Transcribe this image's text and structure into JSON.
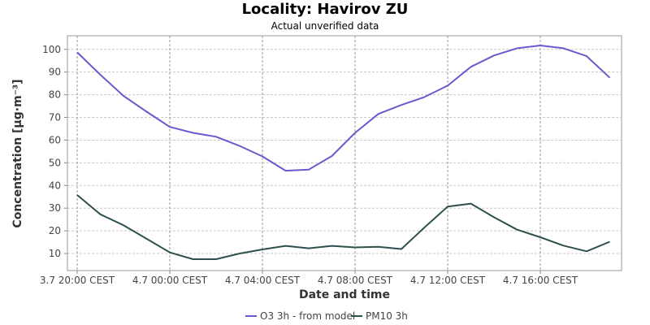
{
  "chart_data": {
    "type": "line",
    "title": "Locality: Havirov ZU",
    "subtitle": "Actual unverified data",
    "xlabel": "Date and time",
    "ylabel": "Concentration [µg·m⁻³]",
    "ylim": [
      2.5,
      106
    ],
    "y_ticks": [
      10,
      20,
      30,
      40,
      50,
      60,
      70,
      80,
      90,
      100
    ],
    "x_start_index": 0,
    "x_end_index": 23.5,
    "x_tick_labels": [
      {
        "index": 0,
        "label": "3.7 20:00 CEST"
      },
      {
        "index": 4,
        "label": "4.7 00:00 CEST"
      },
      {
        "index": 8,
        "label": "4.7 04:00 CEST"
      },
      {
        "index": 12,
        "label": "4.7 08:00 CEST"
      },
      {
        "index": 16,
        "label": "4.7 12:00 CEST"
      },
      {
        "index": 20,
        "label": "4.7 16:00 CEST"
      }
    ],
    "grid": true,
    "legend": "bottom",
    "x": [
      "3.7 20:00",
      "3.7 21:00",
      "3.7 22:00",
      "3.7 23:00",
      "4.7 00:00",
      "4.7 01:00",
      "4.7 02:00",
      "4.7 03:00",
      "4.7 04:00",
      "4.7 05:00",
      "4.7 06:00",
      "4.7 07:00",
      "4.7 08:00",
      "4.7 09:00",
      "4.7 10:00",
      "4.7 11:00",
      "4.7 12:00",
      "4.7 13:00",
      "4.7 14:00",
      "4.7 15:00",
      "4.7 16:00",
      "4.7 17:00",
      "4.7 18:00",
      "4.7 19:00"
    ],
    "series": [
      {
        "name": "O3 3h - from model",
        "color": "#6a5acd",
        "values": [
          98.7,
          88.8,
          79.5,
          72.5,
          65.8,
          63.2,
          61.5,
          57.5,
          52.8,
          46.5,
          47.0,
          53.0,
          63.2,
          71.5,
          75.5,
          79.0,
          84.0,
          92.3,
          97.3,
          100.5,
          101.7,
          100.5,
          97.0,
          87.5
        ]
      },
      {
        "name": "PM10 3h",
        "color": "#2f4f4f",
        "values": [
          35.8,
          27.3,
          22.5,
          16.5,
          10.5,
          7.5,
          7.5,
          10.0,
          11.8,
          13.4,
          12.3,
          13.4,
          12.7,
          13.0,
          12.0,
          21.5,
          30.7,
          32.0,
          26.0,
          20.5,
          17.2,
          13.5,
          11.0,
          15.2
        ]
      }
    ]
  }
}
